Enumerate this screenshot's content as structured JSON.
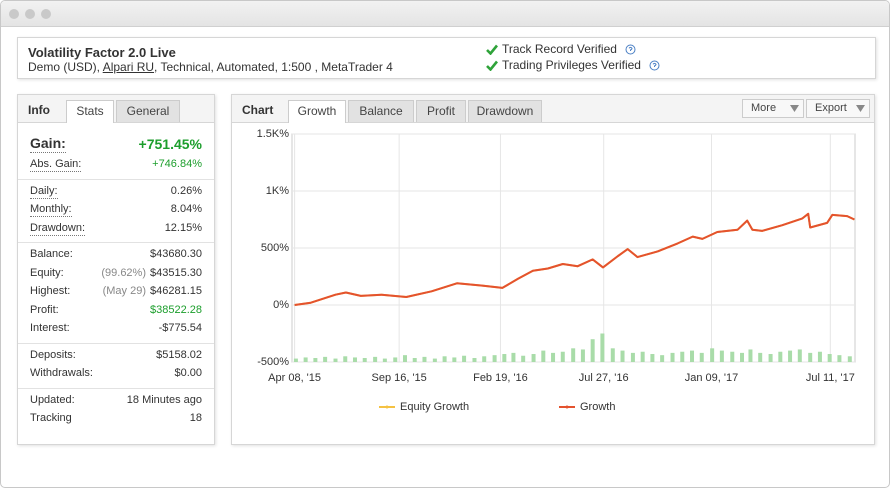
{
  "header": {
    "title": "Volatility Factor 2.0 Live",
    "subtitle": [
      "Demo (USD),",
      "Alpari RU",
      ", Technical, Automated, 1:500 , MetaTrader 4"
    ],
    "verifications": [
      "Track Record Verified",
      "Trading Privileges Verified"
    ]
  },
  "info_panel": {
    "tabs": [
      "Info",
      "Stats",
      "General"
    ],
    "sections": [
      [
        {
          "label": "Gain:",
          "value": "+751.45%"
        },
        {
          "label": "Abs. Gain:",
          "value": "+746.84%"
        }
      ],
      [
        {
          "label": "Daily:",
          "value": "0.26%"
        },
        {
          "label": "Monthly:",
          "value": "8.04%"
        },
        {
          "label": "Drawdown:",
          "value": "12.15%"
        }
      ],
      [
        {
          "label": "Balance:",
          "value": "$43680.30"
        },
        {
          "label": "Equity:",
          "note": "(99.62%)",
          "value": "$43515.30"
        },
        {
          "label": "Highest:",
          "note": "(May 29)",
          "value": "$46281.15"
        },
        {
          "label": "Profit:",
          "value": "$38522.28"
        },
        {
          "label": "Interest:",
          "value": "-$775.54"
        }
      ],
      [
        {
          "label": "Deposits:",
          "value": "$5158.02"
        },
        {
          "label": "Withdrawals:",
          "value": "$0.00"
        }
      ],
      [
        {
          "label": "Updated:",
          "value": "18 Minutes ago"
        },
        {
          "label": "Tracking",
          "value": "18"
        }
      ]
    ]
  },
  "chart_panel": {
    "title": "Chart",
    "tabs": [
      "Growth",
      "Balance",
      "Profit",
      "Drawdown"
    ],
    "buttons": [
      "More",
      "Export"
    ]
  },
  "chart_data": {
    "type": "line",
    "x": [
      "2015-04-08",
      "2015-05-03",
      "2015-06-10",
      "2015-06-26",
      "2015-07-19",
      "2015-08-20",
      "2015-09-27",
      "2015-11-05",
      "2015-12-14",
      "2016-01-22",
      "2016-02-22",
      "2016-03-17",
      "2016-04-09",
      "2016-05-02",
      "2016-05-25",
      "2016-06-17",
      "2016-07-10",
      "2016-07-26",
      "2016-08-18",
      "2016-09-02",
      "2016-09-17",
      "2016-10-18",
      "2016-11-18",
      "2016-12-11",
      "2016-12-26",
      "2017-01-18",
      "2017-02-18",
      "2017-03-05",
      "2017-03-13",
      "2017-03-28",
      "2017-04-28",
      "2017-05-29",
      "2017-06-07",
      "2017-06-10",
      "2017-07-06",
      "2017-07-14",
      "2017-08-06",
      "2017-08-17"
    ],
    "series": [
      {
        "name": "Equity Growth",
        "color": "#f5c242",
        "values": [
          0,
          20,
          90,
          110,
          80,
          90,
          70,
          120,
          190,
          170,
          150,
          230,
          300,
          320,
          360,
          340,
          400,
          330,
          430,
          490,
          420,
          470,
          540,
          600,
          580,
          640,
          660,
          740,
          660,
          650,
          700,
          760,
          800,
          680,
          720,
          790,
          780,
          750
        ]
      },
      {
        "name": "Growth",
        "color": "#e4522e",
        "values": [
          0,
          20,
          90,
          110,
          80,
          90,
          70,
          120,
          190,
          170,
          150,
          230,
          300,
          320,
          360,
          340,
          400,
          330,
          430,
          490,
          420,
          470,
          540,
          600,
          580,
          640,
          660,
          740,
          660,
          650,
          700,
          760,
          800,
          680,
          720,
          790,
          780,
          750
        ]
      }
    ],
    "bars": {
      "color": "#a9dca9",
      "x": [
        "2015-04-10",
        "2015-04-25",
        "2015-05-10",
        "2015-05-25",
        "2015-06-10",
        "2015-06-25",
        "2015-07-10",
        "2015-07-25",
        "2015-08-10",
        "2015-08-25",
        "2015-09-10",
        "2015-09-25",
        "2015-10-10",
        "2015-10-25",
        "2015-11-10",
        "2015-11-25",
        "2015-12-10",
        "2015-12-25",
        "2016-01-10",
        "2016-01-25",
        "2016-02-10",
        "2016-02-25",
        "2016-03-10",
        "2016-03-25",
        "2016-04-10",
        "2016-04-25",
        "2016-05-10",
        "2016-05-25",
        "2016-06-10",
        "2016-06-25",
        "2016-07-10",
        "2016-07-25",
        "2016-08-10",
        "2016-08-25",
        "2016-09-10",
        "2016-09-25",
        "2016-10-10",
        "2016-10-25",
        "2016-11-10",
        "2016-11-25",
        "2016-12-10",
        "2016-12-25",
        "2017-01-10",
        "2017-01-25",
        "2017-02-10",
        "2017-02-25",
        "2017-03-10",
        "2017-03-25",
        "2017-04-10",
        "2017-04-25",
        "2017-05-10",
        "2017-05-25",
        "2017-06-10",
        "2017-06-25",
        "2017-07-10",
        "2017-07-25",
        "2017-08-10"
      ],
      "values": [
        -470,
        -460,
        -465,
        -455,
        -470,
        -450,
        -460,
        -465,
        -455,
        -470,
        -460,
        -440,
        -465,
        -455,
        -470,
        -450,
        -460,
        -445,
        -465,
        -450,
        -440,
        -430,
        -420,
        -445,
        -430,
        -400,
        -420,
        -410,
        -380,
        -390,
        -300,
        -250,
        -380,
        -400,
        -420,
        -410,
        -430,
        -440,
        -420,
        -410,
        -400,
        -420,
        -380,
        -400,
        -410,
        -420,
        -390,
        -420,
        -430,
        -410,
        -400,
        -390,
        -420,
        -410,
        -430,
        -440,
        -450
      ]
    },
    "xlim": [
      "2015-04-04",
      "2017-08-18"
    ],
    "xticks": [
      {
        "value": "2015-04-08",
        "label": "Apr 08, '15"
      },
      {
        "value": "2015-09-16",
        "label": "Sep 16, '15"
      },
      {
        "value": "2016-02-19",
        "label": "Feb 19, '16"
      },
      {
        "value": "2016-07-27",
        "label": "Jul 27, '16"
      },
      {
        "value": "2017-01-09",
        "label": "Jan 09, '17"
      },
      {
        "value": "2017-07-11",
        "label": "Jul 11, '17"
      }
    ],
    "ylim": [
      -500,
      1500
    ],
    "yticks": [
      {
        "value": -500,
        "label": "-500%"
      },
      {
        "value": 0,
        "label": "0%"
      },
      {
        "value": 500,
        "label": "500%"
      },
      {
        "value": 1000,
        "label": "1K%"
      },
      {
        "value": 1500,
        "label": "1.5K%"
      }
    ],
    "grid": true
  }
}
